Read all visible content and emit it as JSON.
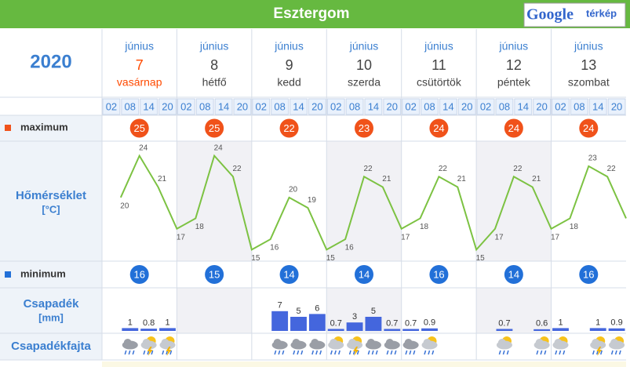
{
  "header": {
    "title": "Esztergom",
    "map_brand": "Google",
    "map_label": "térkép"
  },
  "table": {
    "year": "2020",
    "days": [
      {
        "month": "június",
        "day": 7,
        "weekday": "vasárnap",
        "color": "#ff4a00"
      },
      {
        "month": "június",
        "day": 8,
        "weekday": "hétfő",
        "color": "#444444"
      },
      {
        "month": "június",
        "day": 9,
        "weekday": "kedd",
        "color": "#444444"
      },
      {
        "month": "június",
        "day": 10,
        "weekday": "szerda",
        "color": "#444444"
      },
      {
        "month": "június",
        "day": 11,
        "weekday": "csütörtök",
        "color": "#444444"
      },
      {
        "month": "június",
        "day": 12,
        "weekday": "péntek",
        "color": "#444444"
      },
      {
        "month": "június",
        "day": 13,
        "weekday": "szombat",
        "color": "#444444"
      }
    ],
    "hours": [
      "02",
      "08",
      "14",
      "20"
    ],
    "row_labels": {
      "maximum": "maximum",
      "temperature": "Hőmérséklet",
      "temperature_unit": "[°C]",
      "minimum": "minimum",
      "precipitation": "Csapadék",
      "precipitation_unit": "[mm]",
      "precipitation_type": "Csapadékfajta"
    },
    "maximum": {
      "values": [
        25,
        25,
        22,
        23,
        24,
        24,
        24
      ],
      "color": "#f0521a"
    },
    "minimum": {
      "values": [
        16,
        15,
        14,
        14,
        16,
        14,
        16
      ],
      "color": "#2270d8"
    },
    "precipitation_icons": [
      null,
      "rain",
      "storm",
      "storm",
      null,
      null,
      null,
      null,
      null,
      "rain",
      "rain",
      "rain",
      "sun-rain",
      "storm",
      "rain",
      "rain",
      "rain",
      "sun-rain",
      null,
      null,
      null,
      "sun-rain",
      null,
      "sun-rain",
      "sun-rain",
      null,
      "storm",
      "sun-rain"
    ]
  },
  "chart_data": [
    {
      "type": "line",
      "color": "#7cc242",
      "values": [
        20,
        24,
        21,
        17,
        18,
        24,
        22,
        15,
        16,
        20,
        19,
        15,
        16,
        22,
        21,
        17,
        18,
        22,
        21,
        15,
        17,
        22,
        21,
        17,
        18,
        23,
        22,
        18
      ],
      "value_labels": [
        "20",
        "24",
        "21",
        "17",
        "18",
        "24",
        "22",
        "15",
        "16",
        "20",
        "19",
        "15",
        "16",
        "22",
        "21",
        "17",
        "18",
        "22",
        "21",
        "15",
        "17",
        "22",
        "21",
        "17",
        "18",
        "23",
        "22",
        null
      ],
      "ylim": [
        13.9,
        25.4
      ]
    },
    {
      "type": "bar",
      "color": "#4466dd",
      "values": [
        null,
        1,
        0.8,
        1,
        null,
        null,
        null,
        null,
        null,
        7,
        5,
        6,
        0.7,
        3,
        5,
        0.7,
        0.7,
        0.9,
        null,
        null,
        null,
        0.7,
        null,
        0.6,
        1,
        null,
        1,
        0.9
      ],
      "ylim": [
        0,
        7.5
      ]
    }
  ]
}
